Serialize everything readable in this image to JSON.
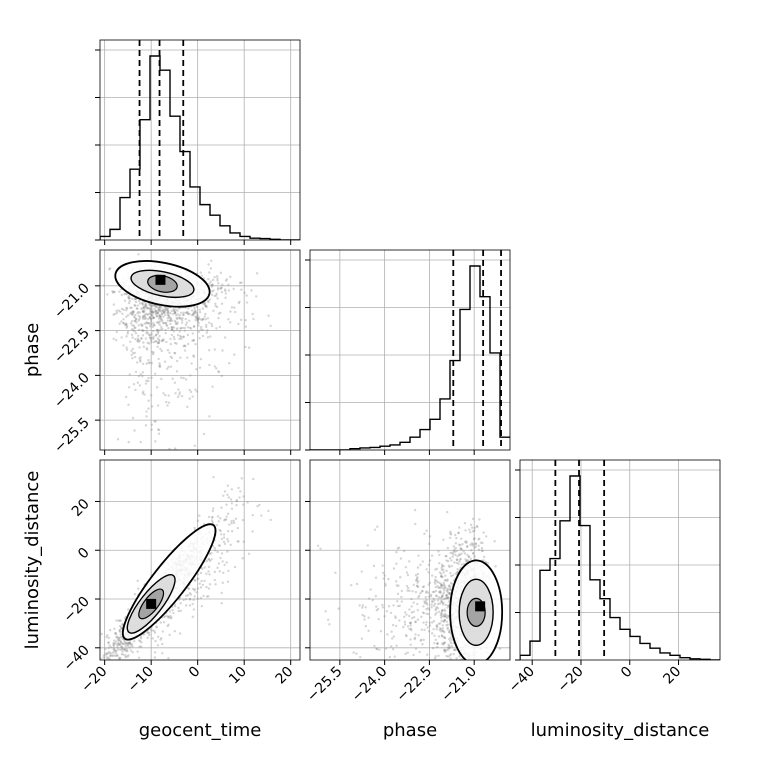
{
  "chart_data": {
    "type": "corner",
    "parameters": [
      "geocent_time",
      "phase",
      "luminosity_distance"
    ],
    "axis_labels": {
      "geocent_time": "geocent_time",
      "phase": "phase",
      "luminosity_distance": "luminosity_distance"
    },
    "ticks": {
      "geocent_time": {
        "values": [
          -20,
          -10,
          0,
          10,
          20
        ],
        "labels": [
          "−20",
          "−10",
          "0",
          "10",
          "20"
        ],
        "range": [
          -21,
          22
        ]
      },
      "phase": {
        "values": [
          -25.5,
          -24.0,
          -22.5,
          -21.0
        ],
        "labels": [
          "−25.5",
          "−24.0",
          "−22.5",
          "−21.0"
        ],
        "range": [
          -26.5,
          -19.8
        ]
      },
      "luminosity_distance": {
        "values": [
          -40,
          -20,
          0,
          20
        ],
        "labels": [
          "−40",
          "−20",
          "0",
          "20"
        ],
        "range": [
          -45,
          37
        ]
      }
    },
    "quantiles": {
      "geocent_time": [
        -12.5,
        -8.2,
        -3.1
      ],
      "phase": [
        -21.7,
        -20.7,
        -20.1
      ],
      "luminosity_distance": [
        -30.5,
        -20.8,
        -10.5
      ]
    },
    "histograms": {
      "geocent_time": {
        "bin_edges": [
          -21,
          -18.85,
          -16.7,
          -14.55,
          -12.4,
          -10.25,
          -8.1,
          -5.95,
          -3.8,
          -1.65,
          0.5,
          2.65,
          4.8,
          6.95,
          9.1,
          11.25,
          13.4,
          15.55,
          17.7,
          19.85,
          22
        ],
        "counts": [
          1,
          3,
          12,
          20,
          34,
          52,
          48,
          35,
          25,
          15,
          10,
          7,
          4,
          2,
          1,
          0.5,
          0.4,
          0.2,
          0,
          0
        ]
      },
      "phase": {
        "bin_edges": [
          -26.5,
          -26.165,
          -25.83,
          -25.495,
          -25.16,
          -24.825,
          -24.49,
          -24.155,
          -23.82,
          -23.485,
          -23.15,
          -22.815,
          -22.48,
          -22.145,
          -21.81,
          -21.475,
          -21.14,
          -20.805,
          -20.47,
          -20.135,
          -19.8
        ],
        "counts": [
          0,
          0,
          0,
          0,
          0.5,
          0.8,
          1,
          1.5,
          2,
          3,
          5,
          8,
          12,
          20,
          35,
          55,
          72,
          60,
          38,
          5
        ]
      },
      "luminosity_distance": {
        "bin_edges": [
          -45,
          -40.9,
          -36.8,
          -32.7,
          -28.6,
          -24.5,
          -20.4,
          -16.3,
          -12.2,
          -8.1,
          -4,
          0.1,
          4.2,
          8.3,
          12.4,
          16.5,
          20.6,
          24.7,
          28.8,
          32.9,
          37
        ],
        "counts": [
          2,
          8,
          38,
          43,
          59,
          78,
          57,
          34,
          26,
          18,
          13,
          10,
          7,
          5,
          3,
          2,
          1,
          0.5,
          0.3,
          0
        ]
      }
    },
    "density_2d": [
      {
        "x": "geocent_time",
        "y": "phase",
        "mode": [
          -8,
          -20.8
        ],
        "spread": [
          6,
          0.9
        ]
      },
      {
        "x": "geocent_time",
        "y": "luminosity_distance",
        "mode": [
          -10,
          -22
        ],
        "correlation": 0.93
      },
      {
        "x": "phase",
        "y": "luminosity_distance",
        "mode": [
          -20.8,
          -23
        ],
        "spread": [
          0.6,
          13
        ]
      }
    ],
    "grid": true
  }
}
